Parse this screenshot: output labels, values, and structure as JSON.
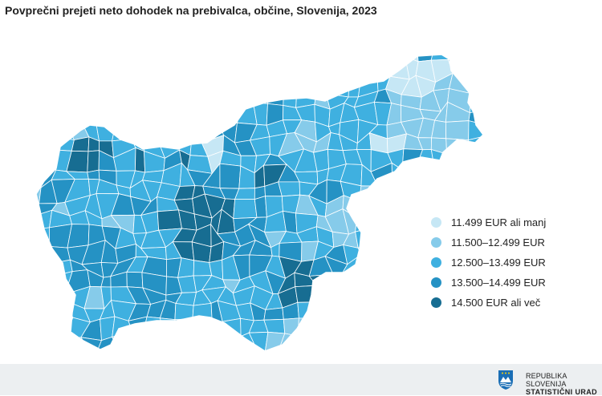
{
  "title": "Povprečni prejeti neto dohodek na prebivalca, občine, Slovenija, 2023",
  "legend": [
    {
      "label": "11.499 EUR ali manj",
      "color": "#c6e7f5"
    },
    {
      "label": "11.500–12.499 EUR",
      "color": "#86cbea"
    },
    {
      "label": "12.500–13.499 EUR",
      "color": "#3fb0e0"
    },
    {
      "label": "13.500–14.499 EUR",
      "color": "#2592c4"
    },
    {
      "label": "14.500 EUR ali več",
      "color": "#176d92"
    }
  ],
  "colors": {
    "border": "#ffffff",
    "footer_bg": "#eceff1",
    "emblem_blue": "#1a6eb5"
  },
  "footer": {
    "logo_line1": "REPUBLIKA SLOVENIJA",
    "logo_line2": "STATISTIČNI URAD"
  }
}
